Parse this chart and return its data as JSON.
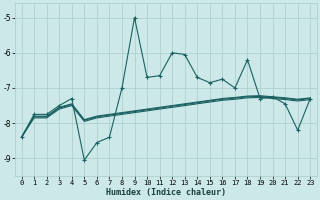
{
  "xlabel": "Humidex (Indice chaleur)",
  "bg_color": "#cce8e8",
  "grid_color": "#aacccc",
  "line_color": "#1a6060",
  "xlim": [
    -0.5,
    23.5
  ],
  "ylim": [
    -9.5,
    -4.6
  ],
  "yticks": [
    -9,
    -8,
    -7,
    -6,
    -5
  ],
  "xticks": [
    0,
    1,
    2,
    3,
    4,
    5,
    6,
    7,
    8,
    9,
    10,
    11,
    12,
    13,
    14,
    15,
    16,
    17,
    18,
    19,
    20,
    21,
    22,
    23
  ],
  "series": [
    {
      "x": [
        0,
        1,
        2,
        3,
        4,
        5,
        6,
        7,
        8,
        9,
        10,
        11,
        12,
        13,
        14,
        15,
        16,
        17,
        18,
        19,
        20,
        21,
        22,
        23
      ],
      "y": [
        -8.4,
        -7.75,
        -7.75,
        -7.5,
        -7.3,
        -9.05,
        -8.55,
        -8.4,
        -7.0,
        -5.0,
        -6.7,
        -6.65,
        -6.0,
        -6.05,
        -6.7,
        -6.85,
        -6.75,
        -7.0,
        -6.2,
        -7.3,
        -7.25,
        -7.45,
        -8.2,
        -7.3
      ],
      "marker": "+",
      "markersize": 3.0,
      "linewidth": 0.8,
      "zorder": 5
    },
    {
      "x": [
        0,
        1,
        2,
        3,
        4,
        5,
        6,
        7,
        8,
        9,
        10,
        11,
        12,
        13,
        14,
        15,
        16,
        17,
        18,
        19,
        20,
        21,
        22,
        23
      ],
      "y": [
        -8.4,
        -7.8,
        -7.8,
        -7.55,
        -7.45,
        -7.9,
        -7.8,
        -7.75,
        -7.7,
        -7.65,
        -7.6,
        -7.55,
        -7.5,
        -7.45,
        -7.4,
        -7.35,
        -7.3,
        -7.27,
        -7.23,
        -7.22,
        -7.25,
        -7.28,
        -7.32,
        -7.28
      ],
      "marker": null,
      "linewidth": 0.8,
      "zorder": 3
    },
    {
      "x": [
        0,
        1,
        2,
        3,
        4,
        5,
        6,
        7,
        8,
        9,
        10,
        11,
        12,
        13,
        14,
        15,
        16,
        17,
        18,
        19,
        20,
        21,
        22,
        23
      ],
      "y": [
        -8.4,
        -7.82,
        -7.82,
        -7.57,
        -7.47,
        -7.92,
        -7.82,
        -7.77,
        -7.72,
        -7.67,
        -7.62,
        -7.57,
        -7.52,
        -7.47,
        -7.42,
        -7.37,
        -7.32,
        -7.29,
        -7.25,
        -7.24,
        -7.27,
        -7.3,
        -7.34,
        -7.3
      ],
      "marker": null,
      "linewidth": 0.8,
      "zorder": 3
    },
    {
      "x": [
        0,
        1,
        2,
        3,
        4,
        5,
        6,
        7,
        8,
        9,
        10,
        11,
        12,
        13,
        14,
        15,
        16,
        17,
        18,
        19,
        20,
        21,
        22,
        23
      ],
      "y": [
        -8.4,
        -7.85,
        -7.85,
        -7.6,
        -7.5,
        -7.95,
        -7.85,
        -7.8,
        -7.75,
        -7.7,
        -7.65,
        -7.6,
        -7.55,
        -7.5,
        -7.45,
        -7.4,
        -7.35,
        -7.32,
        -7.28,
        -7.27,
        -7.3,
        -7.33,
        -7.37,
        -7.33
      ],
      "marker": null,
      "linewidth": 0.8,
      "zorder": 3
    }
  ]
}
